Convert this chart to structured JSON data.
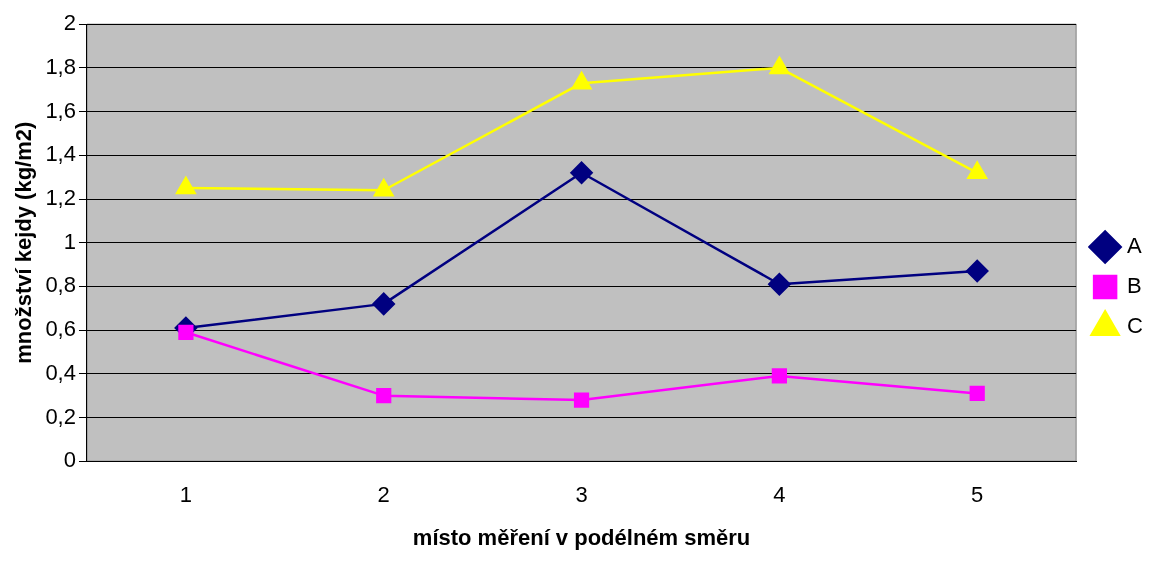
{
  "chart_data": {
    "type": "line",
    "xlabel": "místo měření v podélném směru",
    "ylabel": "množství kejdy (kg/m2)",
    "categories": [
      "1",
      "2",
      "3",
      "4",
      "5"
    ],
    "series": [
      {
        "name": "A",
        "color": "#000080",
        "marker": "diamond",
        "values": [
          0.61,
          0.72,
          1.32,
          0.81,
          0.87
        ]
      },
      {
        "name": "B",
        "color": "#ff00ff",
        "marker": "square",
        "values": [
          0.59,
          0.3,
          0.28,
          0.39,
          0.31
        ]
      },
      {
        "name": "C",
        "color": "#ffff00",
        "marker": "triangle",
        "values": [
          1.25,
          1.24,
          1.73,
          1.8,
          1.32
        ]
      }
    ],
    "ylim": [
      0,
      2
    ],
    "yticks": [
      0,
      {
        "value": 0.2,
        "label": "0,2"
      },
      {
        "value": 0.4,
        "label": "0,4"
      },
      {
        "value": 0.6,
        "label": "0,6"
      },
      {
        "value": 0.8,
        "label": "0,8"
      },
      1,
      {
        "value": 1.2,
        "label": "1,2"
      },
      {
        "value": 1.4,
        "label": "1,4"
      },
      {
        "value": 1.6,
        "label": "1,6"
      },
      {
        "value": 1.8,
        "label": "1,8"
      },
      2
    ],
    "grid": "y",
    "legend": "right",
    "line_style": "solid"
  }
}
